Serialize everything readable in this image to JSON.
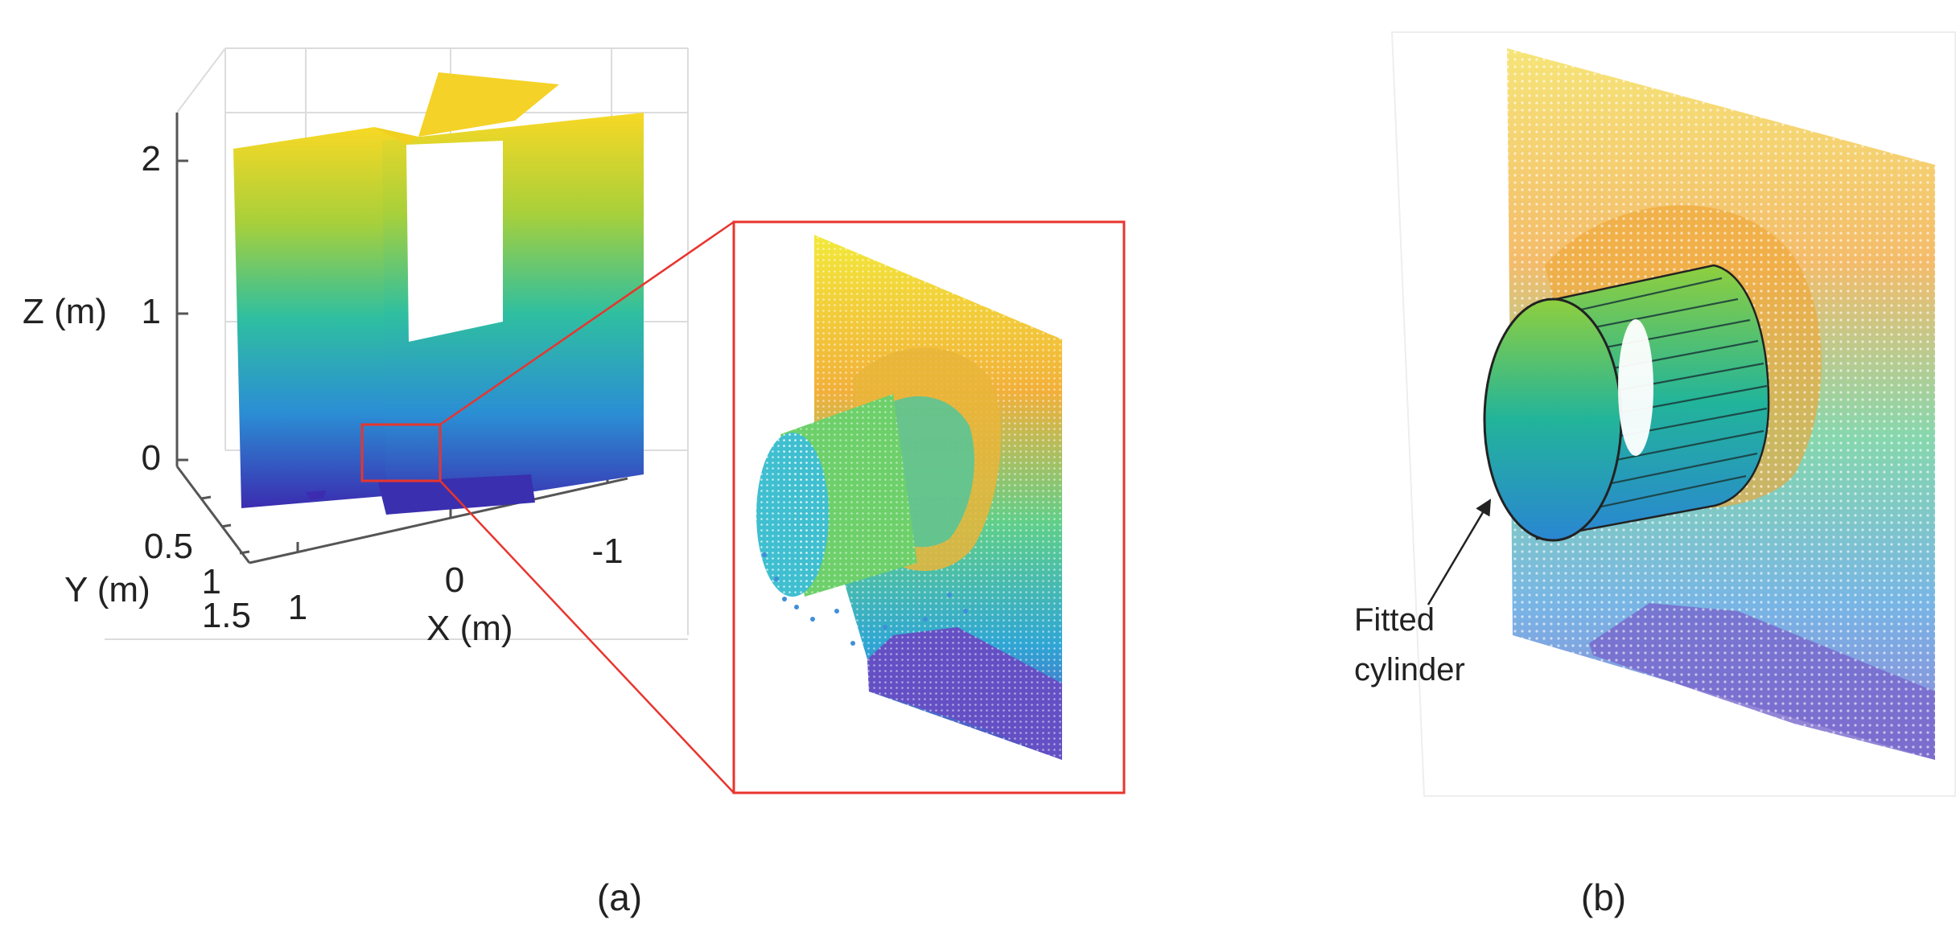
{
  "panel_a": {
    "axis_labels": {
      "z": "Z (m)",
      "y": "Y (m)",
      "x": "X (m)"
    },
    "z_ticks": [
      "2",
      "1",
      "0"
    ],
    "y_ticks": [
      "0.5",
      "1",
      "1.5"
    ],
    "x_ticks": [
      "1",
      "0",
      "-1"
    ],
    "caption": "(a)"
  },
  "panel_b": {
    "annotation_line1": "Fitted",
    "annotation_line2": "cylinder",
    "caption": "(b)"
  },
  "colors": {
    "colormap_low": "#3b2bb0",
    "colormap_mid_low": "#2a8fd0",
    "colormap_mid": "#21b8a0",
    "colormap_mid_high": "#7fcd4a",
    "colormap_high": "#f6d224",
    "highlight_box": "#e8352e",
    "axis_grid": "#dddddd",
    "axis_line": "#555555"
  }
}
